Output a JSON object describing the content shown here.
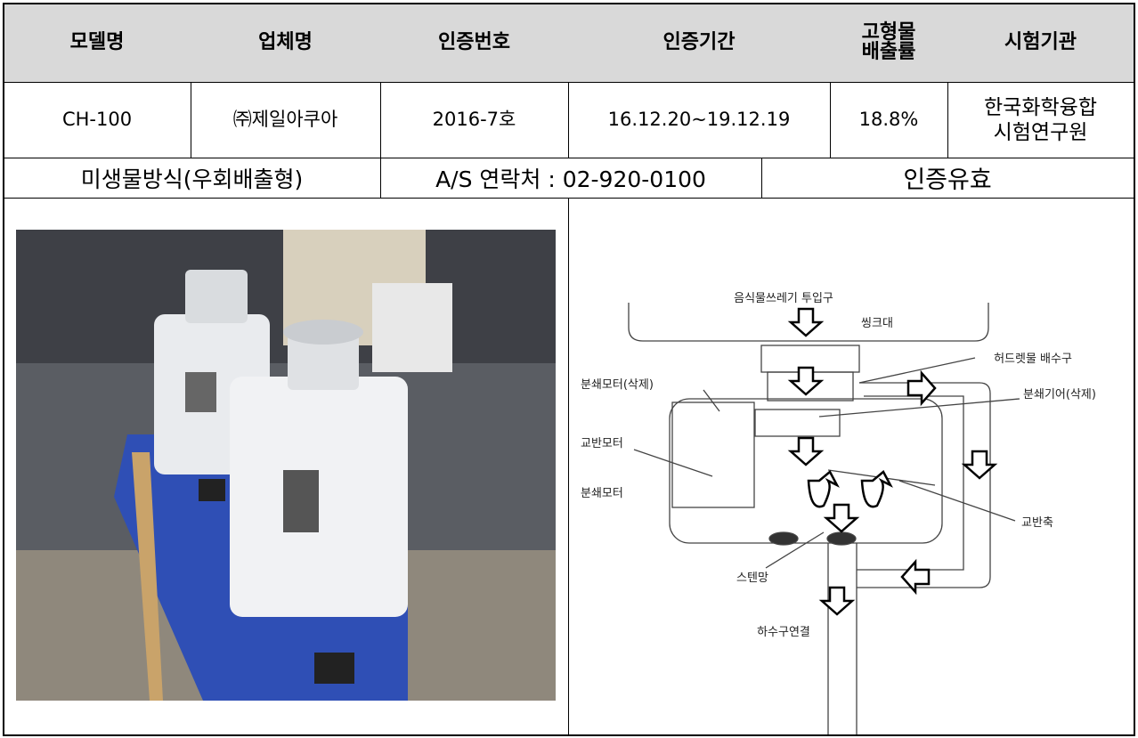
{
  "table": {
    "header": [
      "모델명",
      "업체명",
      "인증번호",
      "인증기간",
      "고형물\n배출률",
      "시험기관"
    ],
    "row": [
      "CH-100",
      "㈜제일아쿠아",
      "2016-7호",
      "16.12.20~19.12.19",
      "18.8%",
      "한국화학융합\n시험연구원"
    ],
    "info": [
      "미생물방식(우회배출형)",
      "A/S 연락처 : 02-920-0100",
      "인증유효"
    ]
  },
  "diagram": {
    "labels": [
      "음식물쓰레기 투입구",
      "씽크대",
      "허드렛물 배수구",
      "분쇄모터(삭제)",
      "분쇄기어(삭제)",
      "교반모터",
      "분쇄모터",
      "교반축",
      "스텐망",
      "하수구연결"
    ]
  }
}
